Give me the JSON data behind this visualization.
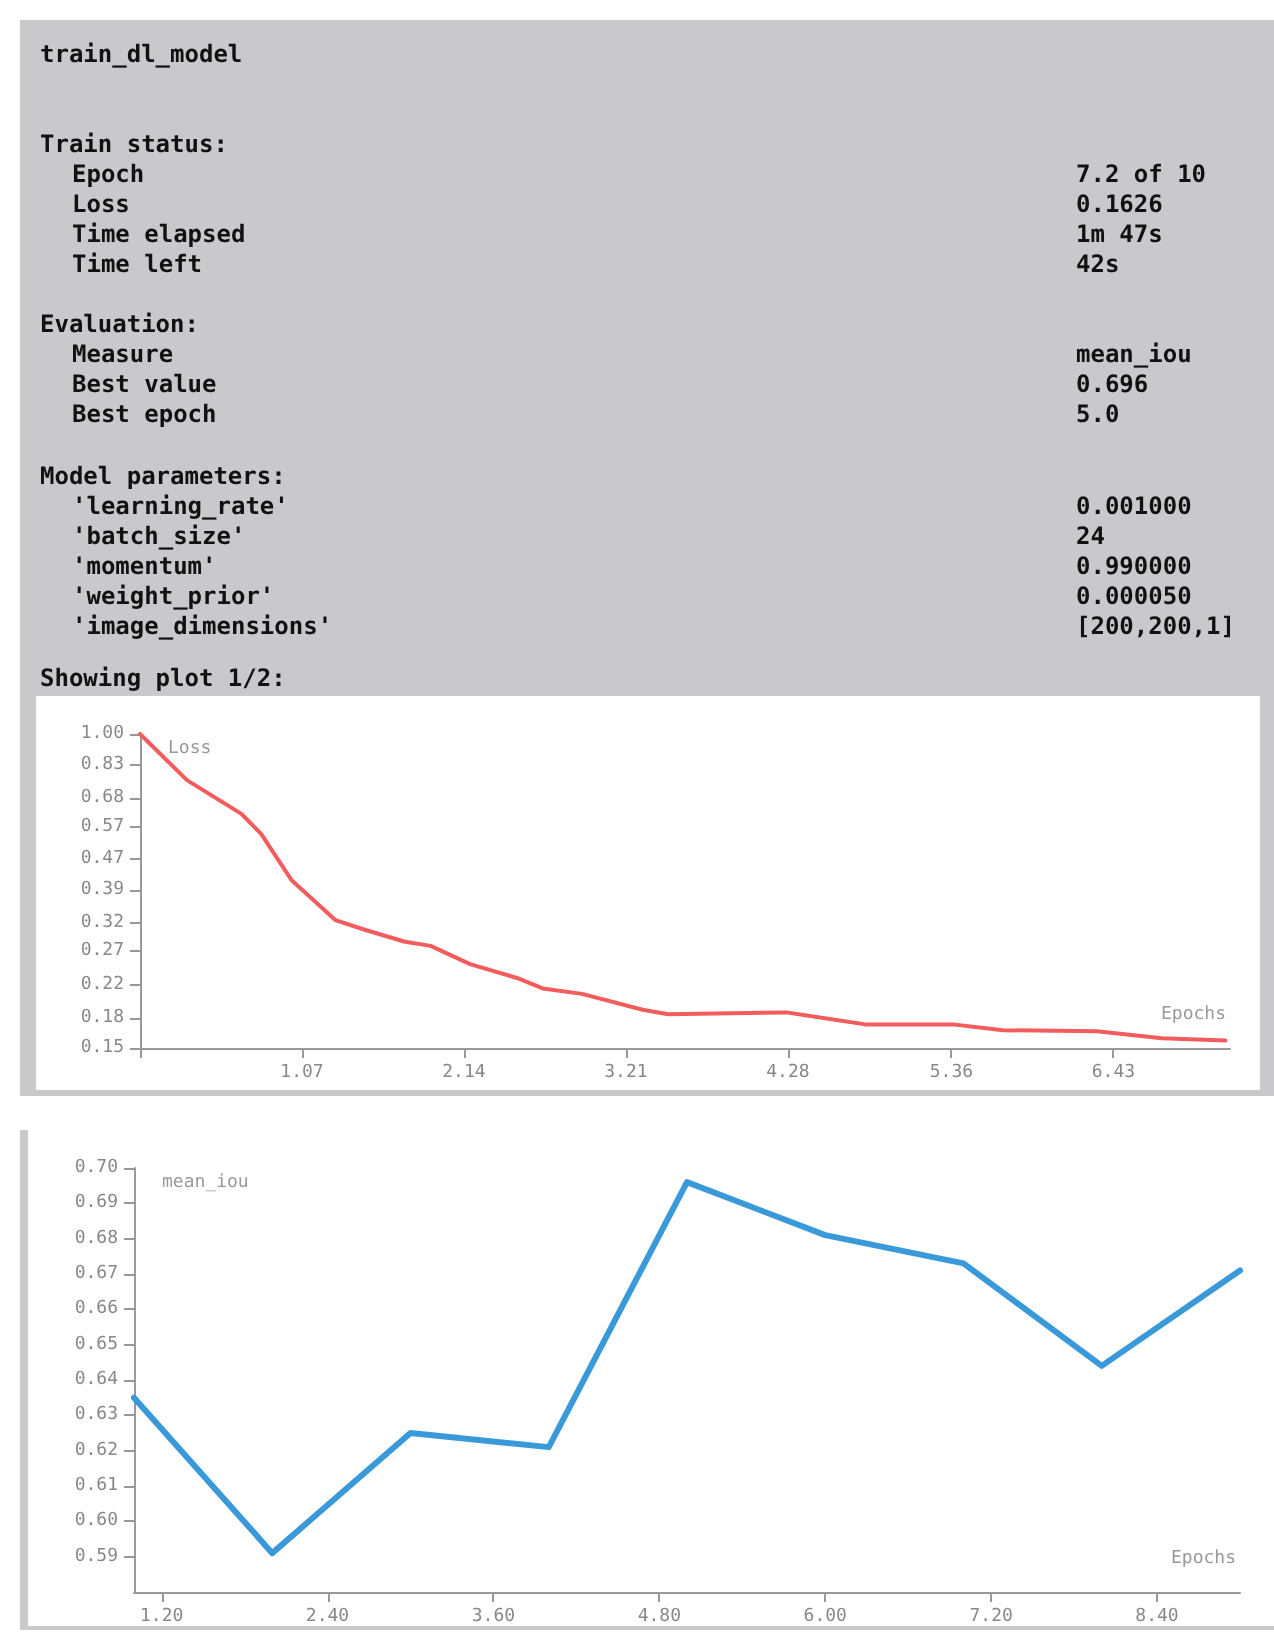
{
  "chart_data": [
    {
      "type": "other",
      "title": "train_dl_model"
    },
    {
      "type": "other",
      "title": "Train status:",
      "categories": [
        "Epoch",
        "Loss",
        "Time elapsed",
        "Time left"
      ],
      "value_labels": [
        "7.2 of 10",
        "0.1626",
        "1m 47s",
        "42s"
      ]
    },
    {
      "type": "other",
      "title": "Evaluation:",
      "categories": [
        "Measure",
        "Best value",
        "Best epoch"
      ],
      "value_labels": [
        "mean_iou",
        "0.696",
        "5.0"
      ]
    },
    {
      "type": "other",
      "title": "Model parameters:",
      "categories": [
        "'learning_rate'",
        "'batch_size'",
        "'momentum'",
        "'weight_prior'",
        "'image_dimensions'"
      ],
      "value_labels": [
        "0.001000",
        "24",
        "0.990000",
        "0.000050",
        "[200,200,1]"
      ]
    },
    {
      "type": "line",
      "title": "Showing plot 1/2:",
      "ylabel": "Loss",
      "xlabel": "Epochs",
      "log": "y",
      "xlim": [
        0,
        7.2
      ],
      "xticks": [
        {
          "value": 0,
          "label": null
        },
        1.07,
        2.14,
        3.21,
        4.28,
        5.36,
        6.43
      ],
      "ylim": [
        0.15,
        1.0
      ],
      "yticks": [
        0.15,
        0.18,
        0.22,
        0.27,
        0.32,
        0.39,
        0.47,
        0.57,
        0.68,
        0.83,
        {
          "value": 1.0,
          "label": "1.00"
        }
      ],
      "series": [
        {
          "color": "#f25c5c",
          "x": [
            0,
            0.31,
            0.67,
            0.8,
            1.0,
            1.29,
            1.49,
            1.75,
            1.92,
            2.18,
            2.49,
            2.66,
            2.92,
            3.32,
            3.49,
            4.27,
            4.79,
            5.37,
            5.7,
            6.32,
            6.75,
            7.17
          ],
          "values": [
            1.0,
            0.757,
            0.617,
            0.547,
            0.414,
            0.325,
            0.306,
            0.285,
            0.278,
            0.249,
            0.229,
            0.215,
            0.208,
            0.189,
            0.184,
            0.186,
            0.173,
            0.173,
            0.167,
            0.166,
            0.159,
            0.157
          ]
        }
      ]
    },
    {
      "type": "line",
      "ylabel": "mean_iou",
      "xlabel": "Epochs",
      "xlim": [
        1,
        9
      ],
      "xticks": [
        {
          "value": 1.2,
          "label": "1.20"
        },
        {
          "value": 2.4,
          "label": "2.40"
        },
        {
          "value": 3.6,
          "label": "3.60"
        },
        {
          "value": 4.8,
          "label": "4.80"
        },
        {
          "value": 6.0,
          "label": "6.00"
        },
        {
          "value": 7.2,
          "label": "7.20"
        },
        {
          "value": 8.4,
          "label": "8.40"
        }
      ],
      "ylim": [
        0.58,
        0.7
      ],
      "yticks": [
        0.59,
        {
          "value": 0.6,
          "label": "0.60"
        },
        0.61,
        0.62,
        0.63,
        0.64,
        0.65,
        0.66,
        0.67,
        0.68,
        0.69,
        {
          "value": 0.7,
          "label": "0.70"
        }
      ],
      "series": [
        {
          "color": "#3a9ad9",
          "x": [
            1,
            2,
            3,
            4,
            5,
            6,
            7,
            8,
            9
          ],
          "values": [
            0.635,
            0.591,
            0.625,
            0.621,
            0.696,
            0.681,
            0.673,
            0.644,
            0.671
          ]
        }
      ]
    }
  ]
}
